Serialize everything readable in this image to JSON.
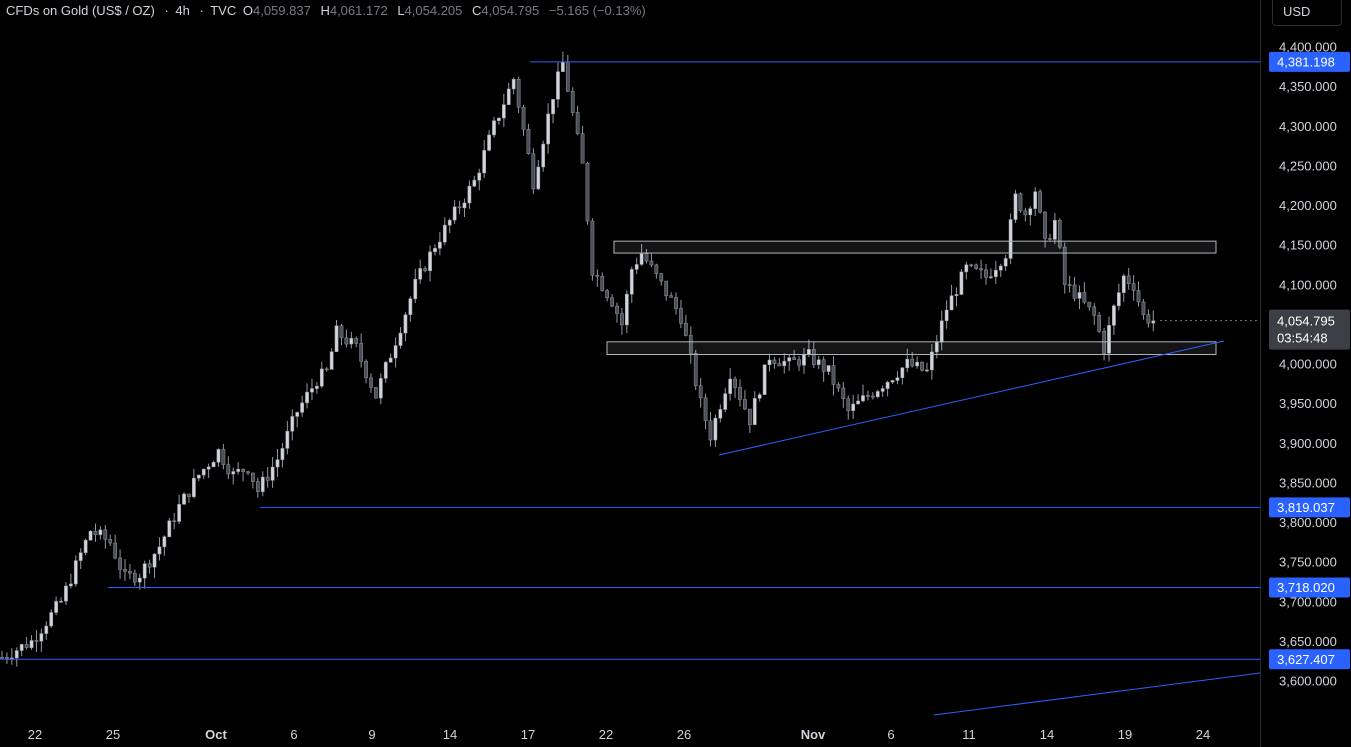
{
  "header": {
    "symbol": "CFDs on Gold (US$ / OZ)",
    "dot1": "·",
    "interval": "4h",
    "dot2": "·",
    "source": "TVC",
    "open_label": "O",
    "open": "4,059.837",
    "high_label": "H",
    "high": "4,061.172",
    "low_label": "L",
    "low": "4,054.205",
    "close_label": "C",
    "close": "4,054.795",
    "change": "−5.165 (−0.13%)"
  },
  "currency": "USD",
  "colors": {
    "background": "#000000",
    "candle": "#9598a1",
    "blue_line": "#2962ff",
    "box": "#b2b5be",
    "tag_blue": "#2962ff",
    "tag_gray": "#3c3f46"
  },
  "price_ticks": [
    "4,400.000",
    "4,350.000",
    "4,300.000",
    "4,250.000",
    "4,200.000",
    "4,150.000",
    "4,100.000",
    "4,054.795",
    "4,000.000",
    "3,950.000",
    "3,900.000",
    "3,850.000",
    "3,800.000",
    "3,750.000",
    "3,700.000",
    "3,650.000",
    "3,600.000"
  ],
  "level_tags": [
    {
      "label": "4,381.198",
      "price": 4381.198
    },
    {
      "label": "3,819.037",
      "price": 3819.037
    },
    {
      "label": "3,718.020",
      "price": 3718.02
    },
    {
      "label": "3,627.407",
      "price": 3627.407
    }
  ],
  "current_price_tag": {
    "price": "4,054.795",
    "countdown": "03:54:48"
  },
  "time_labels": [
    "22",
    "25",
    "Oct",
    "6",
    "9",
    "14",
    "17",
    "22",
    "26",
    "Nov",
    "6",
    "11",
    "14",
    "19",
    "24"
  ],
  "chart_data": {
    "type": "candlestick",
    "title": "CFDs on Gold (US$ / OZ) · 4h · TVC",
    "ylim": [
      3580,
      4420
    ],
    "x_labels": [
      "22",
      "25",
      "Oct",
      "6",
      "9",
      "14",
      "17",
      "22",
      "26",
      "Nov",
      "6",
      "11",
      "14",
      "19",
      "24"
    ],
    "close_path": [
      [
        0,
        3630
      ],
      [
        6,
        3650
      ],
      [
        12,
        3700
      ],
      [
        16,
        3760
      ],
      [
        18,
        3790
      ],
      [
        22,
        3775
      ],
      [
        25,
        3730
      ],
      [
        28,
        3735
      ],
      [
        32,
        3770
      ],
      [
        36,
        3820
      ],
      [
        40,
        3860
      ],
      [
        44,
        3890
      ],
      [
        47,
        3860
      ],
      [
        50,
        3870
      ],
      [
        52,
        3840
      ],
      [
        56,
        3880
      ],
      [
        60,
        3940
      ],
      [
        64,
        3980
      ],
      [
        66,
        3990
      ],
      [
        68,
        4040
      ],
      [
        72,
        4020
      ],
      [
        76,
        3960
      ],
      [
        80,
        4030
      ],
      [
        84,
        4100
      ],
      [
        88,
        4150
      ],
      [
        92,
        4190
      ],
      [
        96,
        4230
      ],
      [
        100,
        4300
      ],
      [
        104,
        4360
      ],
      [
        108,
        4230
      ],
      [
        112,
        4340
      ],
      [
        114,
        4380
      ],
      [
        118,
        4250
      ],
      [
        120,
        4120
      ],
      [
        124,
        4080
      ],
      [
        126,
        4050
      ],
      [
        128,
        4120
      ],
      [
        130,
        4140
      ],
      [
        134,
        4100
      ],
      [
        138,
        4060
      ],
      [
        142,
        3950
      ],
      [
        144,
        3910
      ],
      [
        148,
        3990
      ],
      [
        152,
        3930
      ],
      [
        156,
        4010
      ],
      [
        160,
        4000
      ],
      [
        164,
        4010
      ],
      [
        168,
        3990
      ],
      [
        172,
        3940
      ],
      [
        176,
        3960
      ],
      [
        180,
        3980
      ],
      [
        184,
        4000
      ],
      [
        188,
        3990
      ],
      [
        192,
        4070
      ],
      [
        196,
        4120
      ],
      [
        200,
        4110
      ],
      [
        204,
        4140
      ],
      [
        206,
        4210
      ],
      [
        208,
        4190
      ],
      [
        210,
        4220
      ],
      [
        212,
        4150
      ],
      [
        214,
        4180
      ],
      [
        216,
        4100
      ],
      [
        218,
        4090
      ],
      [
        222,
        4060
      ],
      [
        224,
        4020
      ],
      [
        226,
        4070
      ],
      [
        228,
        4110
      ],
      [
        230,
        4100
      ],
      [
        232,
        4060
      ],
      [
        234,
        4055
      ]
    ],
    "horizontal_levels": [
      4381.198,
      3819.037,
      3718.02,
      3627.407
    ],
    "zones": [
      [
        4140,
        4155
      ],
      [
        4012,
        4028
      ]
    ],
    "trendlines": [
      "rising support from 3,888 (Oct 28) to 4,030 (Nov 21)",
      "rising line in lower right"
    ]
  }
}
